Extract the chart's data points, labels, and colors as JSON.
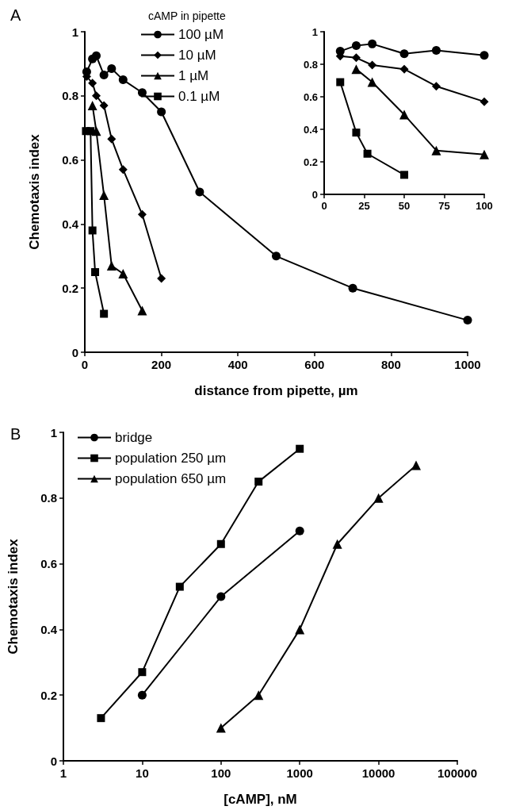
{
  "chart_data": [
    {
      "type": "line",
      "title": "A",
      "xlabel": "distance from pipette, µm",
      "ylabel": "Chemotaxis index",
      "legend_title": "cAMP in pipette",
      "legend": "top",
      "grid": false,
      "line_style": "solid",
      "xlim": [
        0,
        1000
      ],
      "xticks": [
        0,
        200,
        400,
        600,
        800,
        1000
      ],
      "ylim": [
        0,
        1
      ],
      "yticks": [
        0,
        0.2,
        0.4,
        0.6,
        0.8,
        1
      ],
      "series": [
        {
          "name": "100 µM",
          "color": "#000000",
          "marker": "circle",
          "x": [
            5,
            20,
            30,
            50,
            70,
            100,
            150,
            200,
            300,
            500,
            700,
            1000
          ],
          "values": [
            0.875,
            0.915,
            0.925,
            0.865,
            0.885,
            0.85,
            0.81,
            0.75,
            0.5,
            0.3,
            0.2,
            0.1
          ]
        },
        {
          "name": "10 µM",
          "color": "#000000",
          "marker": "diamond",
          "x": [
            5,
            20,
            30,
            50,
            70,
            100,
            150,
            200
          ],
          "values": [
            0.86,
            0.84,
            0.8,
            0.77,
            0.665,
            0.57,
            0.43,
            0.23
          ]
        },
        {
          "name": "1 µM",
          "color": "#000000",
          "marker": "triangle",
          "x": [
            20,
            30,
            50,
            70,
            100,
            150
          ],
          "values": [
            0.77,
            0.69,
            0.49,
            0.27,
            0.245,
            0.13
          ]
        },
        {
          "name": "0.1 µM",
          "color": "#000000",
          "marker": "square",
          "x": [
            3,
            15,
            20,
            27,
            50
          ],
          "values": [
            0.69,
            0.69,
            0.38,
            0.25,
            0.12
          ]
        }
      ]
    },
    {
      "type": "line",
      "legend": false,
      "grid": false,
      "line_style": "solid",
      "xlim": [
        0,
        100
      ],
      "xticks": [
        0,
        25,
        50,
        75,
        100
      ],
      "ylim": [
        0,
        1
      ],
      "yticks": [
        0,
        0.2,
        0.4,
        0.6,
        0.8,
        1
      ],
      "series": [
        {
          "color": "#000000",
          "marker": "circle",
          "x": [
            10,
            20,
            30,
            50,
            70,
            100
          ],
          "values": [
            0.88,
            0.915,
            0.925,
            0.865,
            0.885,
            0.855
          ]
        },
        {
          "color": "#000000",
          "marker": "diamond",
          "x": [
            10,
            20,
            30,
            50,
            70,
            100
          ],
          "values": [
            0.85,
            0.84,
            0.795,
            0.77,
            0.665,
            0.57
          ]
        },
        {
          "color": "#000000",
          "marker": "triangle",
          "x": [
            20,
            30,
            50,
            70,
            100
          ],
          "values": [
            0.77,
            0.69,
            0.49,
            0.27,
            0.245
          ]
        },
        {
          "color": "#000000",
          "marker": "square",
          "x": [
            10,
            20,
            27,
            50
          ],
          "values": [
            0.69,
            0.38,
            0.25,
            0.12
          ]
        }
      ]
    },
    {
      "type": "line",
      "title": "B",
      "xlabel": "[cAMP], nM",
      "ylabel": "Chemotaxis index",
      "legend": "top left",
      "grid": false,
      "line_style": "solid",
      "log": "x",
      "xlim": [
        1,
        100000
      ],
      "xticks": [
        1,
        10,
        100,
        1000,
        10000,
        100000
      ],
      "ylim": [
        0,
        1
      ],
      "yticks": [
        0,
        0.2,
        0.4,
        0.6,
        0.8,
        1
      ],
      "series": [
        {
          "name": "bridge",
          "color": "#000000",
          "marker": "circle",
          "x": [
            10,
            100,
            1000
          ],
          "values": [
            0.2,
            0.5,
            0.7
          ]
        },
        {
          "name": "population 250 µm",
          "color": "#000000",
          "marker": "square",
          "x": [
            3,
            10,
            30,
            100,
            300,
            1000
          ],
          "values": [
            0.13,
            0.27,
            0.53,
            0.66,
            0.85,
            0.95
          ]
        },
        {
          "name": "population 650 µm",
          "color": "#000000",
          "marker": "triangle",
          "x": [
            100,
            300,
            1000,
            3000,
            10000,
            30000
          ],
          "values": [
            0.1,
            0.2,
            0.4,
            0.66,
            0.8,
            0.9
          ]
        }
      ]
    }
  ]
}
